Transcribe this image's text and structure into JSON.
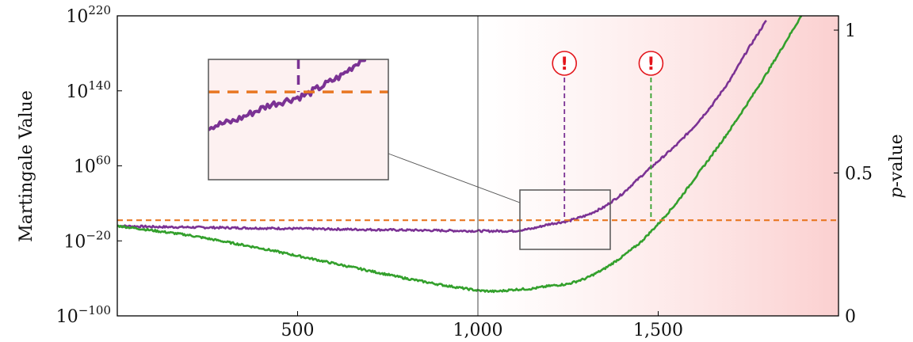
{
  "chart_data": {
    "type": "line",
    "ylabel": "Martingale Value",
    "y2label_italic": "p",
    "y2label_rest": "-value",
    "xlim": [
      0,
      2000
    ],
    "ylim_log10": [
      -100,
      220
    ],
    "y2lim": [
      0,
      1.05
    ],
    "x_ticks": [
      {
        "value": 500,
        "label": "500"
      },
      {
        "value": 1000,
        "label": "1,000"
      },
      {
        "value": 1500,
        "label": "1,500"
      }
    ],
    "y_ticks": [
      {
        "exp": -100,
        "base": "10",
        "sup": "−100"
      },
      {
        "exp": -20,
        "base": "10",
        "sup": "−20"
      },
      {
        "exp": 60,
        "base": "10",
        "sup": "60"
      },
      {
        "exp": 140,
        "base": "10",
        "sup": "140"
      },
      {
        "exp": 220,
        "base": "10",
        "sup": "220"
      }
    ],
    "y2_ticks": [
      {
        "value": 0,
        "label": "0"
      },
      {
        "value": 0.5,
        "label": "0.5"
      },
      {
        "value": 1,
        "label": "1"
      }
    ],
    "threshold_log10": 2,
    "change_point_x": 1000,
    "series": [
      {
        "color": "#7b3294",
        "x": [
          0,
          100,
          200,
          300,
          400,
          500,
          600,
          700,
          800,
          900,
          1000,
          1100,
          1150,
          1200,
          1250,
          1300,
          1350,
          1400,
          1450,
          1500,
          1550,
          1600,
          1650,
          1700,
          1750,
          1800
        ],
        "log10": [
          -4,
          -5,
          -5.5,
          -6,
          -6.5,
          -7,
          -7.5,
          -8,
          -8.5,
          -9,
          -9.5,
          -9.5,
          -7,
          -2,
          1,
          7,
          16,
          30,
          48,
          65,
          82,
          102,
          125,
          152,
          185,
          215
        ]
      },
      {
        "color": "#33a02c",
        "x": [
          0,
          100,
          200,
          300,
          400,
          500,
          600,
          700,
          800,
          900,
          1000,
          1050,
          1100,
          1150,
          1200,
          1250,
          1300,
          1350,
          1400,
          1450,
          1500,
          1550,
          1600,
          1650,
          1700,
          1750,
          1800,
          1850,
          1900
        ],
        "log10": [
          -4,
          -9,
          -14,
          -21,
          -28,
          -36,
          -44,
          -52,
          -60,
          -67,
          -73,
          -74,
          -72,
          -71,
          -68,
          -66,
          -60,
          -50,
          -37,
          -22,
          -2,
          20,
          46,
          72,
          99,
          128,
          158,
          190,
          222
        ]
      }
    ],
    "detections": [
      {
        "x": 1240,
        "color": "#7b3294",
        "symbol": "!"
      },
      {
        "x": 1480,
        "color": "#33a02c",
        "symbol": "!"
      }
    ],
    "inset": {
      "x_range": [
        1115,
        1365
      ],
      "log10_range": [
        -25,
        12
      ]
    }
  }
}
